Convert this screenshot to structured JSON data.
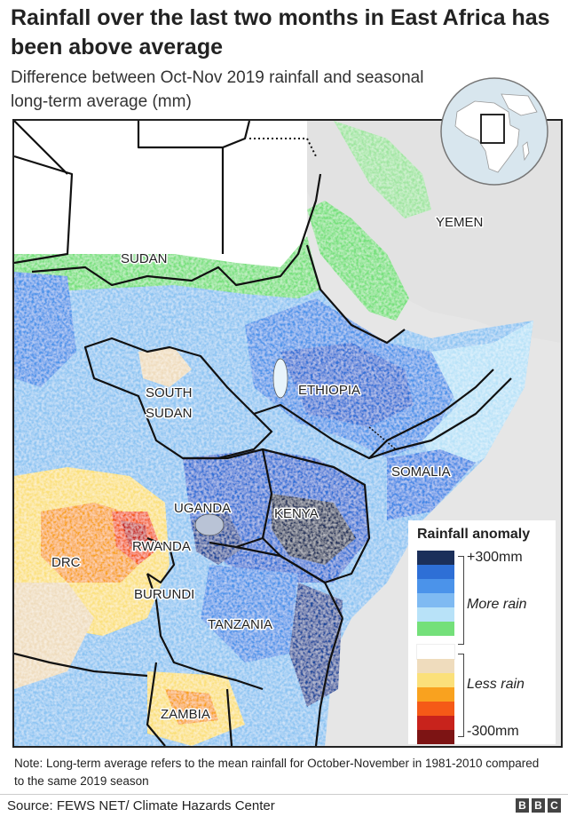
{
  "title": "Rainfall over the last two months in East Africa has been above average",
  "subtitle": "Difference between Oct-Nov 2019 rainfall and seasonal long-term average (mm)",
  "countries": {
    "sudan": "SUDAN",
    "south_sudan_1": "SOUTH",
    "south_sudan_2": "SUDAN",
    "ethiopia": "ETHIOPIA",
    "yemen": "YEMEN",
    "somalia": "SOMALIA",
    "uganda": "UGANDA",
    "kenya": "KENYA",
    "rwanda": "RWANDA",
    "drc": "DRC",
    "burundi": "BURUNDI",
    "tanzania": "TANZANIA",
    "zambia": "ZAMBIA"
  },
  "legend": {
    "title": "Rainfall anomaly",
    "max_label": "+300mm",
    "more_label": "More rain",
    "less_label": "Less rain",
    "min_label": "-300mm",
    "colors": [
      "#1b2f5a",
      "#2e6fd6",
      "#4b93ea",
      "#7fbaf2",
      "#b8e2f8",
      "#74e07a",
      "#ffffff",
      "#efdcbd",
      "#fbe07a",
      "#f9a21f",
      "#f55a17",
      "#c8231c",
      "#7d1414"
    ]
  },
  "note": "Note: Long-term average refers to the mean rainfall for October-November in 1981-2010 compared to the same 2019 season",
  "source": "Source: FEWS NET/ Climate Hazards Center",
  "brand": [
    "B",
    "B",
    "C"
  ]
}
